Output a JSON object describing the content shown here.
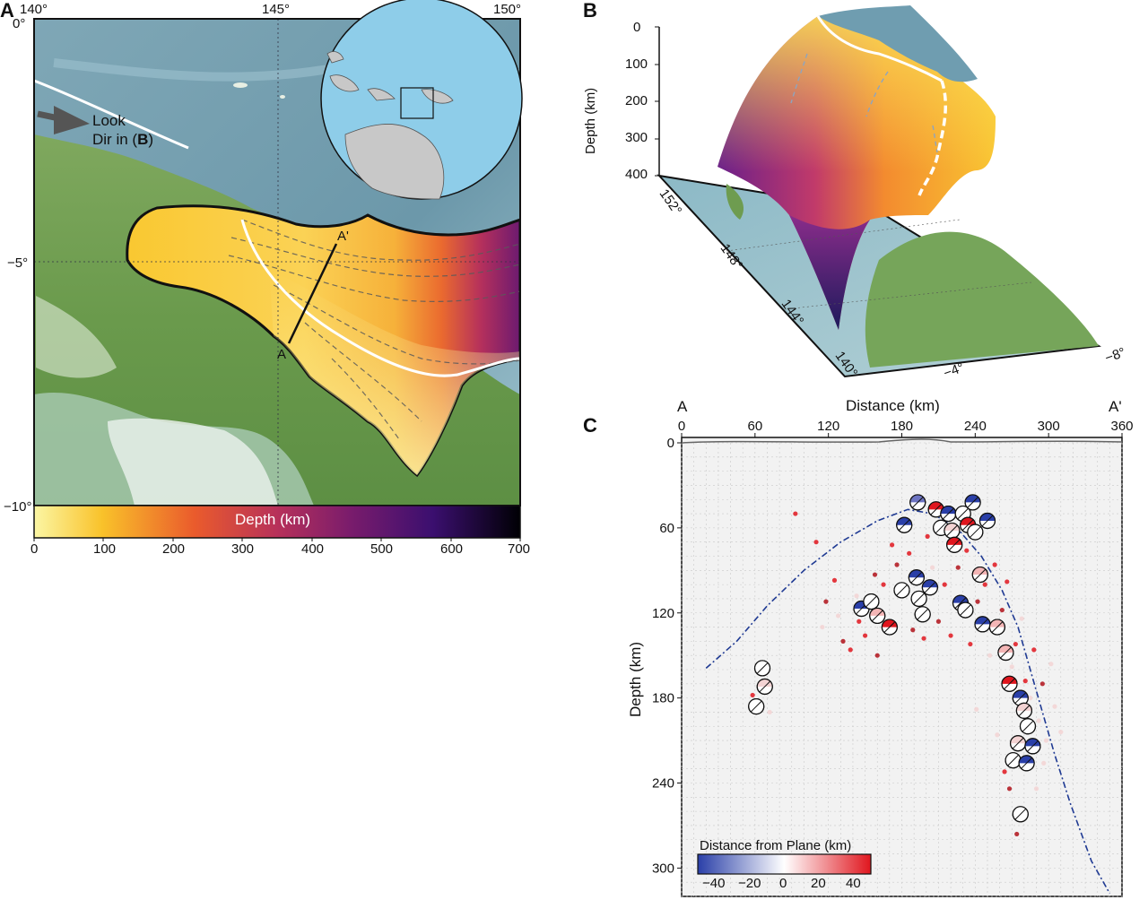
{
  "panel_a": {
    "letter": "A",
    "lon_ticks": [
      "140°",
      "145°",
      "150°"
    ],
    "lat_ticks": [
      "0°",
      "−5°",
      "−10°"
    ],
    "look_dir": {
      "line1": "Look",
      "line2_prefix": "Dir in (",
      "line2_bold": "B",
      "line2_suffix": ")"
    },
    "section_start": "A",
    "section_end": "A'",
    "colorbar": {
      "title": "Depth (km)",
      "ticks": [
        "0",
        "100",
        "200",
        "300",
        "400",
        "500",
        "600",
        "700"
      ],
      "colormap": [
        "#fbf6a4",
        "#f9c22a",
        "#ea5b2c",
        "#b7315a",
        "#7a1c6c",
        "#3b0f6f",
        "#000004"
      ]
    }
  },
  "panel_b": {
    "letter": "B",
    "depth_label": "Depth (km)",
    "depth_ticks": [
      "0",
      "100",
      "200",
      "300",
      "400"
    ],
    "lon_ticks": [
      "152°",
      "148°",
      "144°",
      "140°"
    ],
    "lat_ticks": [
      "−4°",
      "−8°"
    ]
  },
  "panel_c": {
    "letter": "C",
    "top_left_label": "A",
    "top_right_label": "A'",
    "x_title": "Distance (km)",
    "y_title": "Depth (km)",
    "legend_title": "Distance from Plane (km)",
    "legend_ticks": [
      "−40",
      "−20",
      "0",
      "20",
      "40"
    ],
    "legend_colors": [
      "#2a3fa8",
      "#ffffff",
      "#e0161e"
    ]
  },
  "chart_data": {
    "type": "scatter",
    "title": "",
    "xlabel": "Distance (km)",
    "ylabel": "Depth (km)",
    "xlim": [
      0,
      360
    ],
    "ylim": [
      320,
      0
    ],
    "x_ticks": [
      0,
      60,
      120,
      180,
      240,
      300,
      360
    ],
    "y_ticks": [
      0,
      60,
      120,
      180,
      240,
      300
    ],
    "grid": true,
    "slab_curve": [
      [
        20,
        159
      ],
      [
        45,
        140
      ],
      [
        70,
        115
      ],
      [
        100,
        90
      ],
      [
        130,
        70
      ],
      [
        160,
        55
      ],
      [
        185,
        47
      ],
      [
        205,
        50
      ],
      [
        225,
        60
      ],
      [
        245,
        80
      ],
      [
        262,
        104
      ],
      [
        275,
        130
      ],
      [
        285,
        160
      ],
      [
        295,
        190
      ],
      [
        305,
        220
      ],
      [
        318,
        255
      ],
      [
        335,
        295
      ],
      [
        350,
        318
      ]
    ],
    "beachballs": [
      {
        "x": 66,
        "y": 159,
        "color": "#ffffff"
      },
      {
        "x": 68,
        "y": 172,
        "color": "#f3d3d3"
      },
      {
        "x": 61,
        "y": 186,
        "color": "#ffffff"
      },
      {
        "x": 147,
        "y": 117,
        "color": "#2a3fa8"
      },
      {
        "x": 155,
        "y": 112,
        "color": "#ffffff"
      },
      {
        "x": 160,
        "y": 122,
        "color": "#f4b6b6"
      },
      {
        "x": 170,
        "y": 130,
        "color": "#e0161e"
      },
      {
        "x": 180,
        "y": 104,
        "color": "#ffffff"
      },
      {
        "x": 182,
        "y": 58,
        "color": "#2a3fa8"
      },
      {
        "x": 193,
        "y": 42,
        "color": "#6d74c2"
      },
      {
        "x": 192,
        "y": 95,
        "color": "#2a3fa8"
      },
      {
        "x": 194,
        "y": 110,
        "color": "#ffffff"
      },
      {
        "x": 197,
        "y": 121,
        "color": "#ffffff"
      },
      {
        "x": 203,
        "y": 102,
        "color": "#2a3fa8"
      },
      {
        "x": 208,
        "y": 47,
        "color": "#e0161e"
      },
      {
        "x": 212,
        "y": 60,
        "color": "#ffffff"
      },
      {
        "x": 218,
        "y": 50,
        "color": "#2a3fa8"
      },
      {
        "x": 221,
        "y": 62,
        "color": "#f3d3d3"
      },
      {
        "x": 223,
        "y": 72,
        "color": "#e0161e"
      },
      {
        "x": 228,
        "y": 113,
        "color": "#2a3fa8"
      },
      {
        "x": 230,
        "y": 50,
        "color": "#ffffff"
      },
      {
        "x": 232,
        "y": 118,
        "color": "#ffffff"
      },
      {
        "x": 234,
        "y": 58,
        "color": "#e0161e"
      },
      {
        "x": 238,
        "y": 42,
        "color": "#2a3fa8"
      },
      {
        "x": 240,
        "y": 63,
        "color": "#ffffff"
      },
      {
        "x": 244,
        "y": 93,
        "color": "#f4b6b6"
      },
      {
        "x": 246,
        "y": 128,
        "color": "#2a3fa8"
      },
      {
        "x": 250,
        "y": 55,
        "color": "#2a3fa8"
      },
      {
        "x": 258,
        "y": 130,
        "color": "#f4b6b6"
      },
      {
        "x": 265,
        "y": 148,
        "color": "#f4b6b6"
      },
      {
        "x": 268,
        "y": 170,
        "color": "#e0161e"
      },
      {
        "x": 277,
        "y": 180,
        "color": "#2a3fa8"
      },
      {
        "x": 280,
        "y": 189,
        "color": "#f3d3d3"
      },
      {
        "x": 283,
        "y": 200,
        "color": "#ffffff"
      },
      {
        "x": 275,
        "y": 212,
        "color": "#f3d3d3"
      },
      {
        "x": 271,
        "y": 224,
        "color": "#ffffff"
      },
      {
        "x": 282,
        "y": 226,
        "color": "#2a3fa8"
      },
      {
        "x": 287,
        "y": 214,
        "color": "#2a3fa8"
      },
      {
        "x": 277,
        "y": 262,
        "color": "#ffffff"
      }
    ],
    "events": [
      {
        "x": 58,
        "y": 178,
        "color": "#e0161e"
      },
      {
        "x": 72,
        "y": 190,
        "color": "#f3d3d3"
      },
      {
        "x": 93,
        "y": 50,
        "color": "#e0161e"
      },
      {
        "x": 110,
        "y": 70,
        "color": "#e0161e"
      },
      {
        "x": 118,
        "y": 112,
        "color": "#b0121a"
      },
      {
        "x": 125,
        "y": 97,
        "color": "#e0161e"
      },
      {
        "x": 132,
        "y": 140,
        "color": "#b0121a"
      },
      {
        "x": 138,
        "y": 146,
        "color": "#e0161e"
      },
      {
        "x": 143,
        "y": 108,
        "color": "#f3d3d3"
      },
      {
        "x": 150,
        "y": 136,
        "color": "#e0161e"
      },
      {
        "x": 158,
        "y": 93,
        "color": "#b0121a"
      },
      {
        "x": 165,
        "y": 100,
        "color": "#e0161e"
      },
      {
        "x": 172,
        "y": 72,
        "color": "#e0161e"
      },
      {
        "x": 176,
        "y": 86,
        "color": "#b0121a"
      },
      {
        "x": 186,
        "y": 78,
        "color": "#e0161e"
      },
      {
        "x": 189,
        "y": 132,
        "color": "#b0121a"
      },
      {
        "x": 198,
        "y": 138,
        "color": "#e0161e"
      },
      {
        "x": 205,
        "y": 88,
        "color": "#f3d3d3"
      },
      {
        "x": 210,
        "y": 126,
        "color": "#b0121a"
      },
      {
        "x": 215,
        "y": 100,
        "color": "#e0161e"
      },
      {
        "x": 220,
        "y": 136,
        "color": "#e0161e"
      },
      {
        "x": 226,
        "y": 88,
        "color": "#b0121a"
      },
      {
        "x": 236,
        "y": 142,
        "color": "#e0161e"
      },
      {
        "x": 242,
        "y": 112,
        "color": "#b0121a"
      },
      {
        "x": 248,
        "y": 100,
        "color": "#e0161e"
      },
      {
        "x": 252,
        "y": 150,
        "color": "#f3d3d3"
      },
      {
        "x": 256,
        "y": 86,
        "color": "#e0161e"
      },
      {
        "x": 262,
        "y": 118,
        "color": "#b0121a"
      },
      {
        "x": 266,
        "y": 98,
        "color": "#e0161e"
      },
      {
        "x": 270,
        "y": 158,
        "color": "#f3d3d3"
      },
      {
        "x": 273,
        "y": 142,
        "color": "#e0161e"
      },
      {
        "x": 278,
        "y": 124,
        "color": "#f3d3d3"
      },
      {
        "x": 281,
        "y": 168,
        "color": "#e0161e"
      },
      {
        "x": 285,
        "y": 180,
        "color": "#f3d3d3"
      },
      {
        "x": 288,
        "y": 146,
        "color": "#e0161e"
      },
      {
        "x": 292,
        "y": 196,
        "color": "#f3d3d3"
      },
      {
        "x": 295,
        "y": 170,
        "color": "#b0121a"
      },
      {
        "x": 298,
        "y": 210,
        "color": "#f3d3d3"
      },
      {
        "x": 302,
        "y": 156,
        "color": "#f3d3d3"
      },
      {
        "x": 305,
        "y": 186,
        "color": "#f3d3d3"
      },
      {
        "x": 310,
        "y": 204,
        "color": "#f3d3d3"
      },
      {
        "x": 264,
        "y": 232,
        "color": "#e0161e"
      },
      {
        "x": 268,
        "y": 244,
        "color": "#b0121a"
      },
      {
        "x": 274,
        "y": 276,
        "color": "#b0121a"
      },
      {
        "x": 290,
        "y": 244,
        "color": "#f3d3d3"
      },
      {
        "x": 258,
        "y": 206,
        "color": "#f3d3d3"
      },
      {
        "x": 296,
        "y": 226,
        "color": "#f3d3d3"
      },
      {
        "x": 241,
        "y": 188,
        "color": "#f3d3d3"
      },
      {
        "x": 233,
        "y": 76,
        "color": "#e0161e"
      },
      {
        "x": 201,
        "y": 66,
        "color": "#e0161e"
      },
      {
        "x": 160,
        "y": 150,
        "color": "#b0121a"
      },
      {
        "x": 145,
        "y": 126,
        "color": "#e0161e"
      },
      {
        "x": 128,
        "y": 122,
        "color": "#f3d3d3"
      },
      {
        "x": 115,
        "y": 130,
        "color": "#f3d3d3"
      }
    ]
  }
}
